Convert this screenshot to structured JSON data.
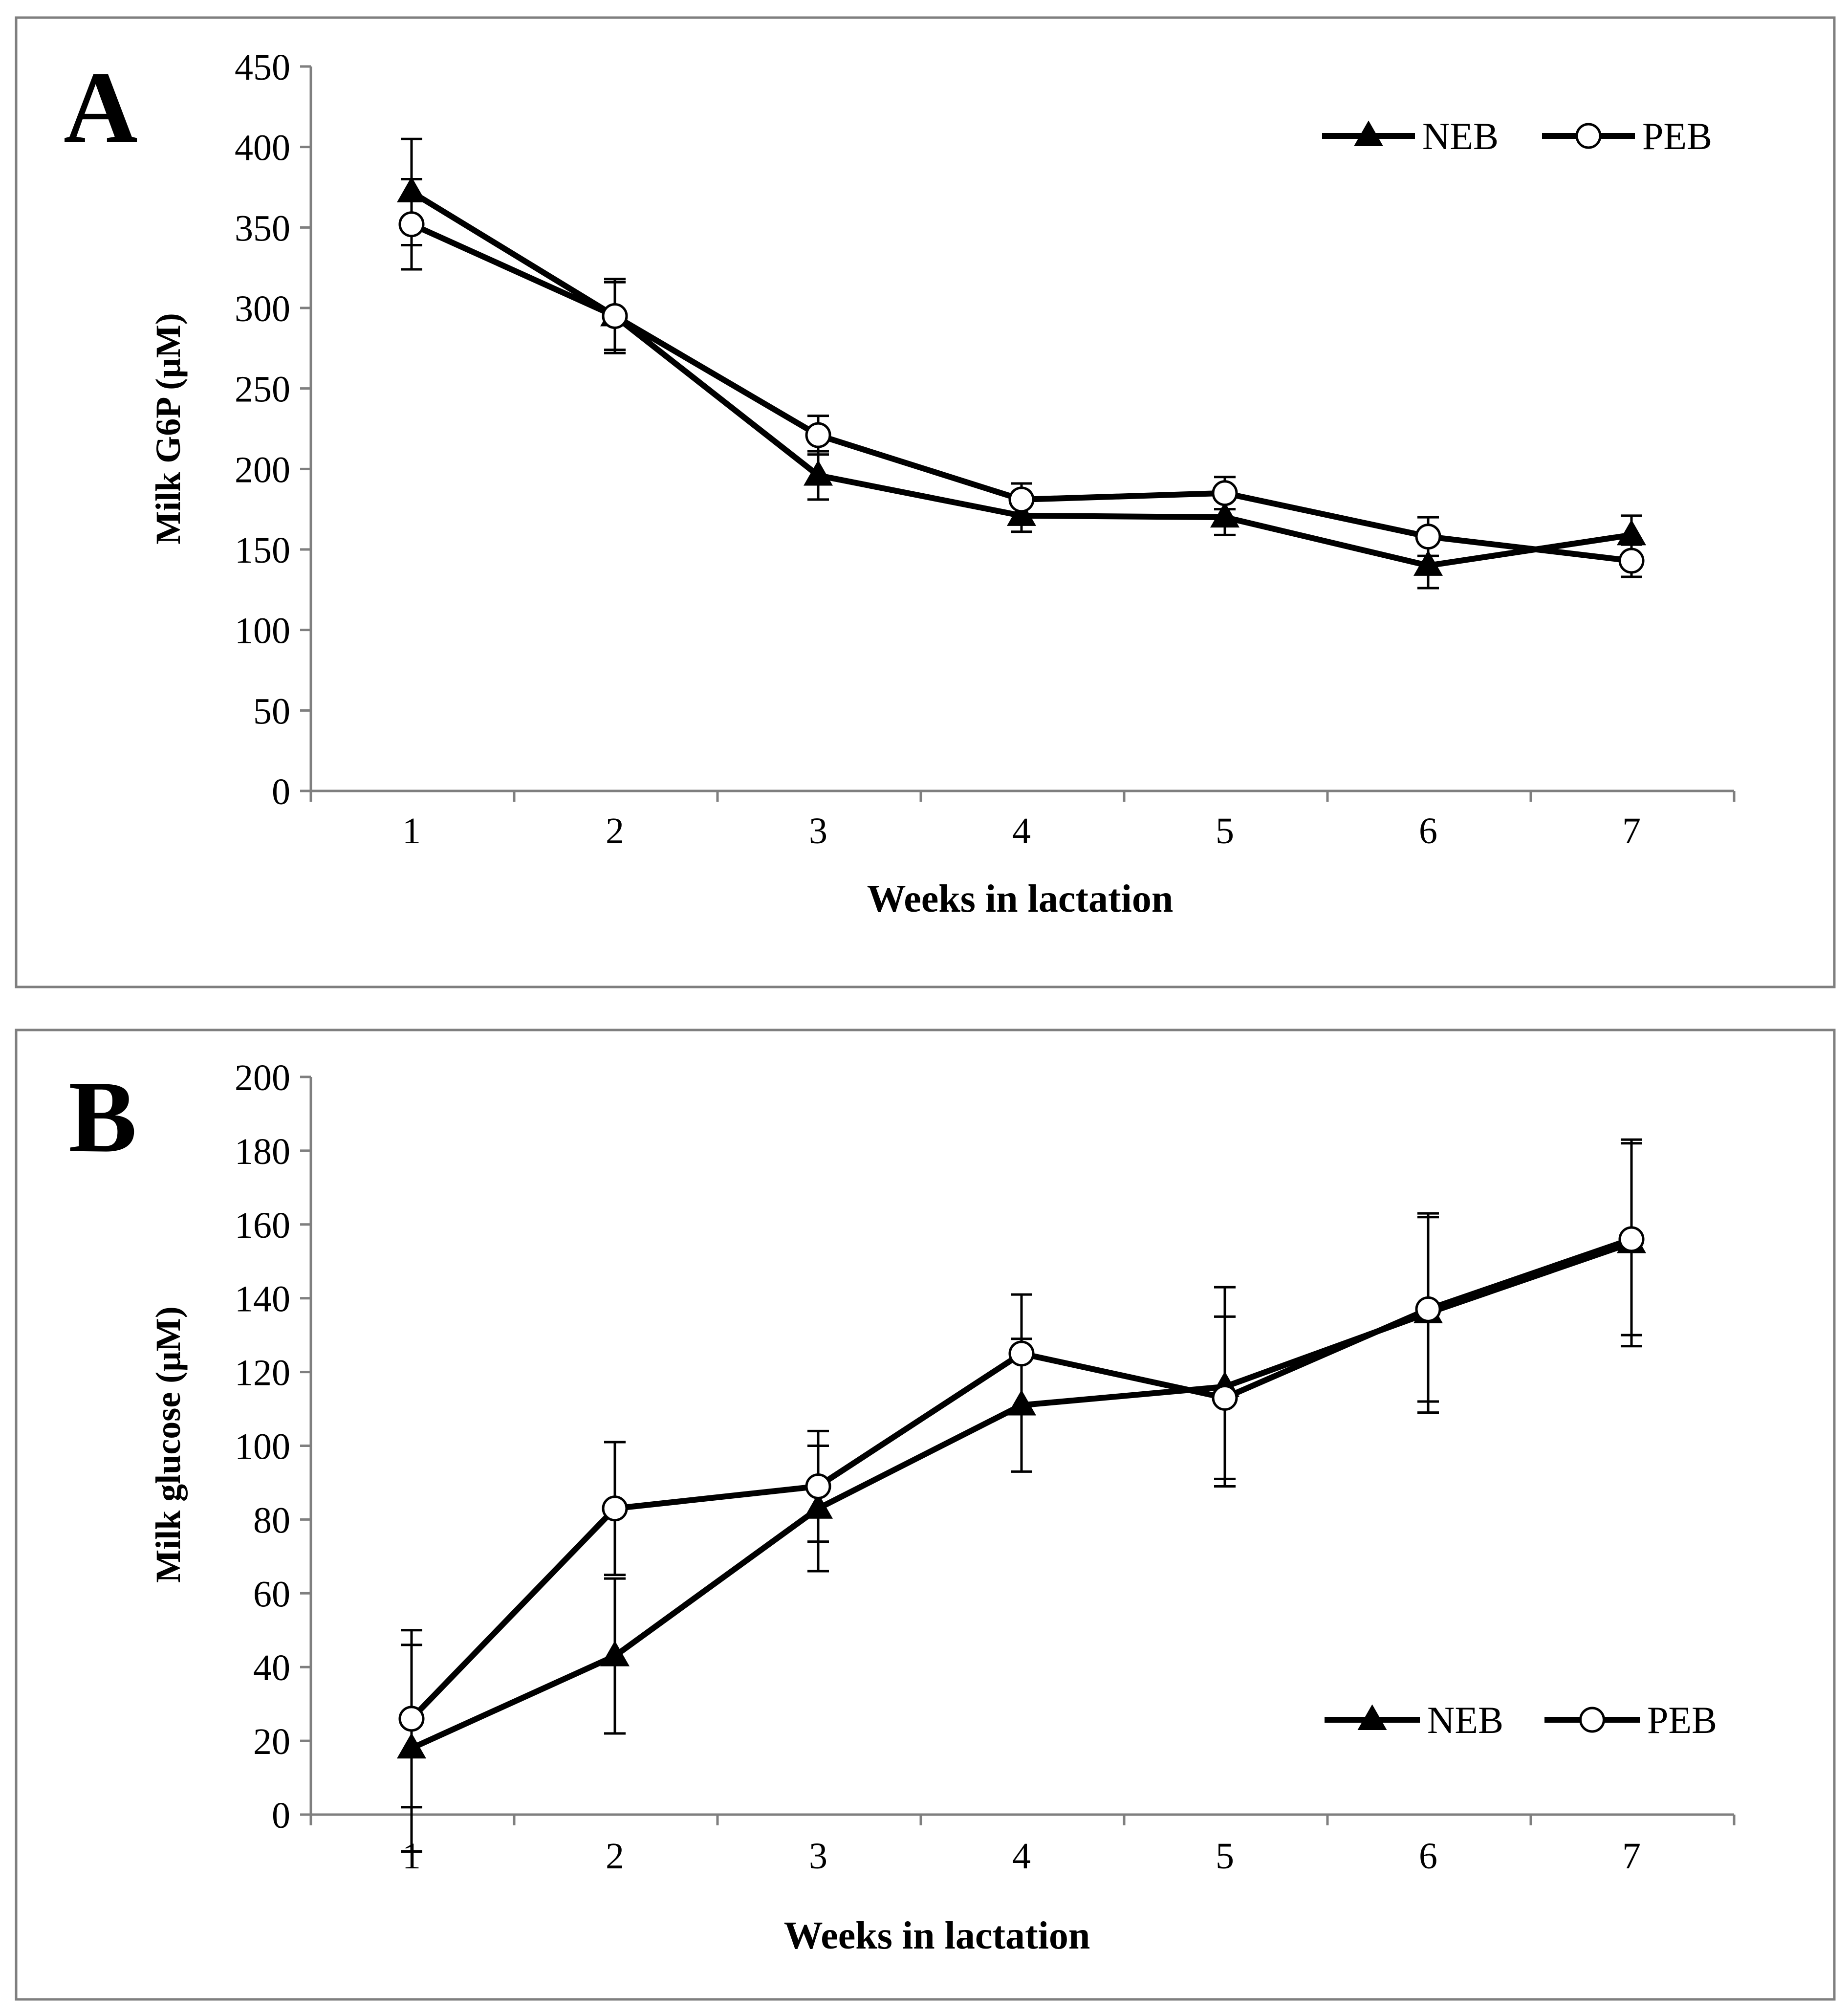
{
  "chart_data": [
    {
      "type": "line",
      "panel_label": "A",
      "title": "",
      "xlabel": "Weeks in lactation",
      "ylabel": "Milk G6P (µM)",
      "categories": [
        "1",
        "2",
        "3",
        "4",
        "5",
        "6",
        "7"
      ],
      "x": [
        1,
        2,
        3,
        4,
        5,
        6,
        7
      ],
      "ylim": [
        0,
        450
      ],
      "yticks": [
        0,
        50,
        100,
        150,
        200,
        250,
        300,
        350,
        400,
        450
      ],
      "yticklabels": [
        "0",
        "50",
        "100",
        "150",
        "200",
        "250",
        "300",
        "350",
        "400",
        "450"
      ],
      "legend_position": "top-right",
      "series": [
        {
          "name": "NEB",
          "marker": "filled-triangle",
          "values": [
            372,
            295,
            196,
            171,
            170,
            140,
            159
          ],
          "errors": [
            33,
            21,
            15,
            10,
            11,
            14,
            12
          ]
        },
        {
          "name": "PEB",
          "marker": "open-circle",
          "values": [
            352,
            295,
            221,
            181,
            185,
            158,
            143
          ],
          "errors": [
            28,
            23,
            12,
            10,
            10,
            12,
            10
          ]
        }
      ]
    },
    {
      "type": "line",
      "panel_label": "B",
      "title": "",
      "xlabel": "Weeks in lactation",
      "ylabel": "Milk glucose (µM)",
      "categories": [
        "1",
        "2",
        "3",
        "4",
        "5",
        "6",
        "7"
      ],
      "x": [
        1,
        2,
        3,
        4,
        5,
        6,
        7
      ],
      "ylim": [
        0,
        200
      ],
      "yticks": [
        0,
        20,
        40,
        60,
        80,
        100,
        120,
        140,
        160,
        180,
        200
      ],
      "yticklabels": [
        "0",
        "20",
        "40",
        "60",
        "80",
        "100",
        "120",
        "140",
        "160",
        "180",
        "200"
      ],
      "legend_position": "bottom-right",
      "series": [
        {
          "name": "NEB",
          "marker": "filled-triangle",
          "values": [
            18,
            43,
            83,
            111,
            116,
            136,
            155
          ],
          "errors": [
            28,
            21,
            17,
            18,
            27,
            27,
            28
          ]
        },
        {
          "name": "PEB",
          "marker": "open-circle",
          "values": [
            26,
            83,
            89,
            125,
            113,
            137,
            156
          ],
          "errors": [
            24,
            18,
            15,
            16,
            22,
            25,
            26
          ]
        }
      ]
    }
  ]
}
